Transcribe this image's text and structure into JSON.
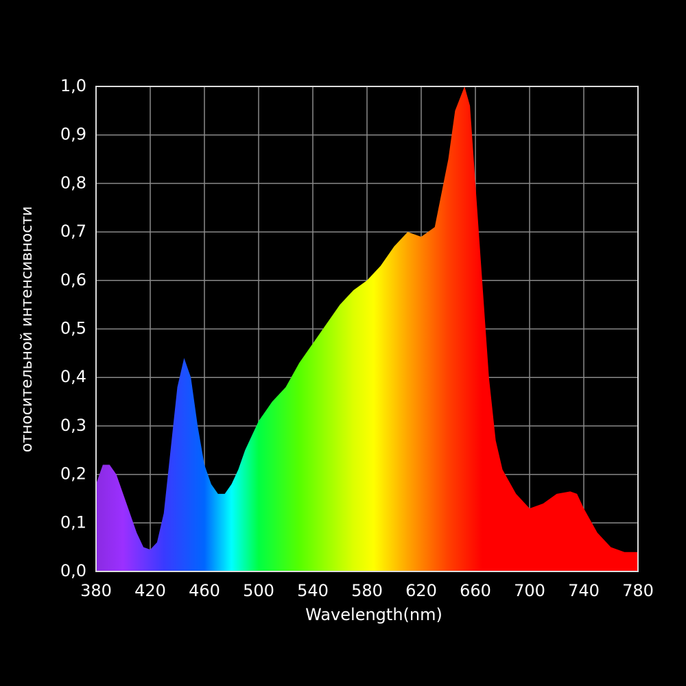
{
  "chart_data": {
    "type": "area",
    "x_label": "Wavelength(nm)",
    "y_label": "относительной интенсивности",
    "x": [
      380,
      385,
      390,
      395,
      400,
      405,
      410,
      415,
      420,
      425,
      430,
      435,
      440,
      445,
      450,
      455,
      460,
      465,
      470,
      475,
      480,
      485,
      490,
      495,
      500,
      505,
      510,
      520,
      530,
      540,
      550,
      560,
      570,
      580,
      590,
      600,
      610,
      620,
      630,
      640,
      645,
      652,
      656,
      660,
      665,
      670,
      675,
      680,
      690,
      700,
      710,
      720,
      730,
      735,
      740,
      750,
      760,
      770,
      780
    ],
    "values": [
      0.18,
      0.22,
      0.22,
      0.2,
      0.16,
      0.12,
      0.08,
      0.05,
      0.045,
      0.06,
      0.12,
      0.25,
      0.38,
      0.44,
      0.4,
      0.3,
      0.22,
      0.18,
      0.16,
      0.16,
      0.18,
      0.21,
      0.25,
      0.28,
      0.31,
      0.33,
      0.35,
      0.38,
      0.43,
      0.47,
      0.51,
      0.55,
      0.58,
      0.6,
      0.63,
      0.67,
      0.7,
      0.69,
      0.71,
      0.85,
      0.95,
      1.0,
      0.96,
      0.8,
      0.6,
      0.4,
      0.27,
      0.21,
      0.16,
      0.13,
      0.14,
      0.16,
      0.165,
      0.16,
      0.13,
      0.08,
      0.05,
      0.04,
      0.04
    ],
    "xlim": [
      380,
      780
    ],
    "xticks": [
      380,
      420,
      460,
      500,
      540,
      580,
      620,
      660,
      700,
      740,
      780
    ],
    "ylim": [
      0,
      1
    ],
    "yticks": [
      {
        "value": 0,
        "label": "0,0"
      },
      {
        "value": 0.1,
        "label": "0,1"
      },
      {
        "value": 0.2,
        "label": "0,2"
      },
      {
        "value": 0.3,
        "label": "0,3"
      },
      {
        "value": 0.4,
        "label": "0,4"
      },
      {
        "value": 0.5,
        "label": "0,5"
      },
      {
        "value": 0.6,
        "label": "0,6"
      },
      {
        "value": 0.7,
        "label": "0,7"
      },
      {
        "value": 0.8,
        "label": "0,8"
      },
      {
        "value": 0.9,
        "label": "0,9"
      },
      {
        "value": 1,
        "label": "1,0"
      }
    ],
    "grid": true
  }
}
